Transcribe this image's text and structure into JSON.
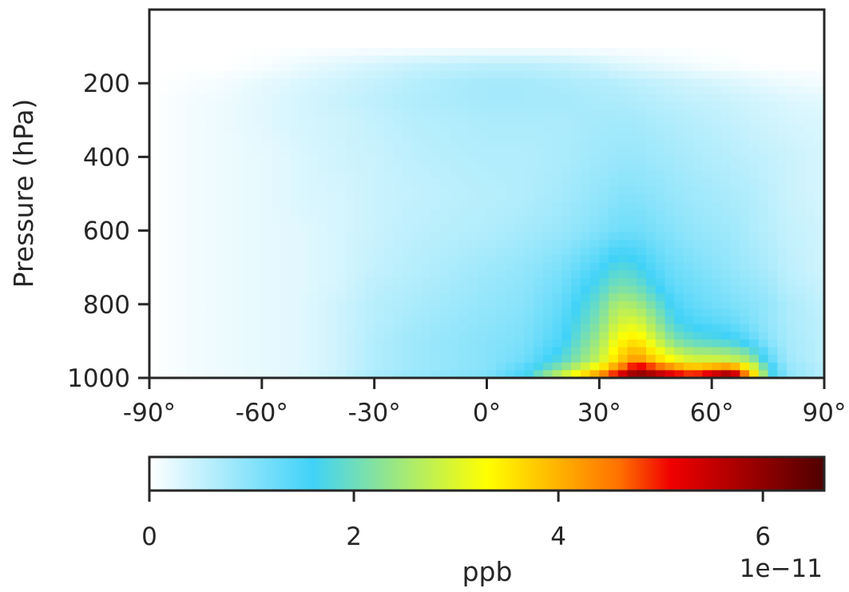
{
  "chart_data": {
    "type": "heatmap",
    "title": "",
    "xlabel": "",
    "ylabel": "Pressure (hPa)",
    "x_tick_labels": [
      "-90°",
      "-60°",
      "-30°",
      "0°",
      "30°",
      "60°",
      "90°"
    ],
    "x_tick_values": [
      -90,
      -60,
      -30,
      0,
      30,
      60,
      90
    ],
    "y_tick_labels": [
      "200",
      "400",
      "600",
      "800",
      "1000"
    ],
    "y_tick_values": [
      200,
      400,
      600,
      800,
      1000
    ],
    "xlim": [
      -90,
      90
    ],
    "ylim": [
      1000,
      0
    ],
    "y_inverted": true,
    "grid": false,
    "colormap": "white-cyan-yellow-red-darkred",
    "colorbar": {
      "orientation": "horizontal",
      "label": "ppb",
      "tick_labels": [
        "0",
        "2",
        "4",
        "6"
      ],
      "tick_values": [
        0,
        2,
        4,
        6
      ],
      "range": [
        0,
        6.6
      ],
      "offset_text": "1e−11",
      "stops": [
        {
          "value": 0.0,
          "color": "#ffffff"
        },
        {
          "value": 1.6,
          "color": "#40d2f8"
        },
        {
          "value": 3.3,
          "color": "#ffff00"
        },
        {
          "value": 4.6,
          "color": "#ff7000"
        },
        {
          "value": 5.1,
          "color": "#f00000"
        },
        {
          "value": 6.6,
          "color": "#4f0000"
        }
      ]
    },
    "latitudes": [
      -90,
      -80,
      -70,
      -60,
      -50,
      -40,
      -30,
      -20,
      -10,
      0,
      10,
      20,
      30,
      35,
      40,
      45,
      50,
      55,
      60,
      65,
      70,
      75,
      80,
      90
    ],
    "pressure_levels": [
      100,
      150,
      200,
      250,
      300,
      400,
      500,
      600,
      700,
      750,
      800,
      850,
      900,
      950,
      975,
      1000
    ],
    "values_1e-11": [
      [
        0.0,
        0.0,
        0.0,
        0.0,
        0.0,
        0.0,
        0.0,
        0.0,
        0.0,
        0.0,
        0.0,
        0.0,
        0.0,
        0.0,
        0.0,
        0.0,
        0.0,
        0.0,
        0.0,
        0.0,
        0.0,
        0.0,
        0.0,
        0.0
      ],
      [
        0.0,
        0.0,
        0.0,
        0.05,
        0.15,
        0.25,
        0.35,
        0.45,
        0.5,
        0.55,
        0.55,
        0.5,
        0.4,
        0.3,
        0.25,
        0.2,
        0.15,
        0.1,
        0.05,
        0.05,
        0.0,
        0.0,
        0.0,
        0.0
      ],
      [
        0.0,
        0.05,
        0.1,
        0.2,
        0.3,
        0.4,
        0.5,
        0.6,
        0.7,
        0.75,
        0.75,
        0.7,
        0.65,
        0.6,
        0.55,
        0.5,
        0.45,
        0.4,
        0.35,
        0.3,
        0.25,
        0.2,
        0.15,
        0.1
      ],
      [
        0.0,
        0.1,
        0.15,
        0.25,
        0.35,
        0.45,
        0.55,
        0.65,
        0.7,
        0.75,
        0.75,
        0.75,
        0.7,
        0.7,
        0.65,
        0.6,
        0.55,
        0.5,
        0.5,
        0.45,
        0.4,
        0.35,
        0.3,
        0.25
      ],
      [
        0.0,
        0.1,
        0.15,
        0.25,
        0.35,
        0.4,
        0.5,
        0.6,
        0.65,
        0.7,
        0.7,
        0.7,
        0.75,
        0.75,
        0.75,
        0.7,
        0.65,
        0.6,
        0.55,
        0.5,
        0.45,
        0.4,
        0.35,
        0.3
      ],
      [
        0.0,
        0.1,
        0.15,
        0.2,
        0.3,
        0.4,
        0.45,
        0.55,
        0.6,
        0.65,
        0.65,
        0.7,
        0.8,
        0.85,
        0.85,
        0.8,
        0.75,
        0.7,
        0.65,
        0.6,
        0.55,
        0.5,
        0.45,
        0.35
      ],
      [
        0.0,
        0.1,
        0.15,
        0.2,
        0.3,
        0.35,
        0.45,
        0.5,
        0.55,
        0.6,
        0.65,
        0.75,
        0.9,
        1.0,
        1.0,
        0.95,
        0.85,
        0.8,
        0.75,
        0.7,
        0.65,
        0.55,
        0.45,
        0.35
      ],
      [
        0.0,
        0.1,
        0.15,
        0.2,
        0.25,
        0.35,
        0.45,
        0.55,
        0.6,
        0.65,
        0.75,
        0.85,
        1.05,
        1.2,
        1.2,
        1.1,
        1.0,
        0.9,
        0.85,
        0.8,
        0.7,
        0.6,
        0.5,
        0.4
      ],
      [
        0.0,
        0.1,
        0.15,
        0.2,
        0.25,
        0.35,
        0.5,
        0.6,
        0.7,
        0.8,
        0.9,
        1.1,
        1.5,
        1.8,
        1.7,
        1.4,
        1.2,
        1.1,
        1.0,
        0.9,
        0.8,
        0.7,
        0.55,
        0.4
      ],
      [
        0.0,
        0.1,
        0.15,
        0.2,
        0.25,
        0.35,
        0.55,
        0.65,
        0.75,
        0.85,
        0.95,
        1.2,
        1.75,
        2.1,
        2.0,
        1.6,
        1.3,
        1.2,
        1.1,
        1.0,
        0.9,
        0.8,
        0.6,
        0.45
      ],
      [
        0.0,
        0.1,
        0.15,
        0.2,
        0.25,
        0.4,
        0.6,
        0.7,
        0.8,
        0.9,
        1.0,
        1.3,
        2.0,
        2.6,
        2.5,
        2.0,
        1.5,
        1.3,
        1.2,
        1.1,
        1.0,
        0.9,
        0.7,
        0.5
      ],
      [
        0.0,
        0.1,
        0.15,
        0.2,
        0.25,
        0.4,
        0.6,
        0.75,
        0.85,
        0.95,
        1.05,
        1.4,
        2.2,
        2.9,
        3.0,
        2.4,
        1.7,
        1.5,
        1.4,
        1.3,
        1.1,
        0.9,
        0.7,
        0.55
      ],
      [
        0.0,
        0.1,
        0.15,
        0.2,
        0.25,
        0.4,
        0.65,
        0.8,
        0.9,
        1.0,
        1.1,
        1.5,
        2.5,
        3.3,
        3.6,
        2.9,
        2.2,
        1.9,
        1.8,
        1.7,
        1.4,
        1.0,
        0.75,
        0.55
      ],
      [
        0.0,
        0.1,
        0.15,
        0.2,
        0.25,
        0.4,
        0.65,
        0.8,
        0.9,
        1.0,
        1.2,
        1.8,
        2.8,
        3.7,
        4.3,
        3.7,
        3.2,
        2.9,
        2.9,
        2.8,
        2.5,
        1.4,
        0.8,
        0.55
      ],
      [
        0.0,
        0.1,
        0.15,
        0.2,
        0.25,
        0.4,
        0.65,
        0.8,
        0.9,
        1.0,
        1.4,
        2.3,
        3.5,
        4.4,
        5.5,
        5.0,
        4.4,
        4.0,
        4.3,
        4.6,
        3.5,
        1.8,
        0.9,
        0.6
      ],
      [
        0.0,
        0.1,
        0.15,
        0.2,
        0.3,
        0.45,
        0.75,
        0.9,
        1.0,
        1.1,
        1.6,
        3.0,
        4.6,
        5.6,
        6.4,
        6.1,
        5.6,
        5.4,
        6.0,
        6.6,
        4.5,
        2.0,
        1.0,
        0.6
      ]
    ]
  }
}
